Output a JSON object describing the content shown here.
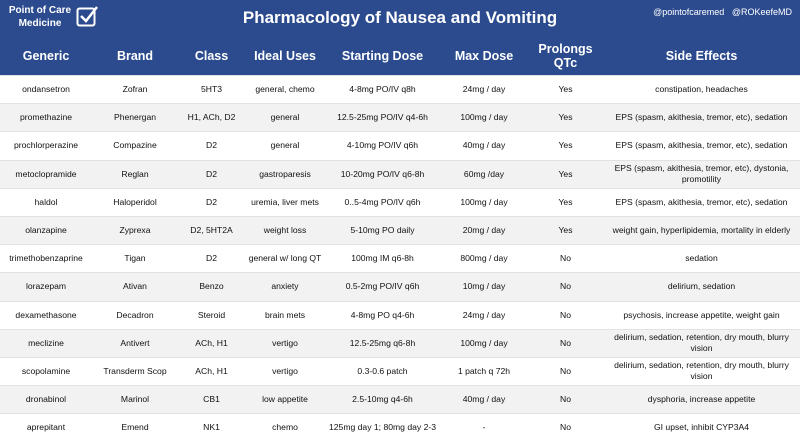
{
  "header": {
    "logo": [
      "Point of Care",
      "Medicine"
    ],
    "title": "Pharmacology of Nausea and Vomiting",
    "handles": [
      "@pointofcaremed",
      "@ROKeefeMD"
    ]
  },
  "table": {
    "columns": [
      "Generic",
      "Brand",
      "Class",
      "Ideal Uses",
      "Starting Dose",
      "Max Dose",
      "Prolongs QTc",
      "Side Effects"
    ],
    "rows": [
      [
        "ondansetron",
        "Zofran",
        "5HT3",
        "general, chemo",
        "4-8mg PO/IV q8h",
        "24mg / day",
        "Yes",
        "constipation, headaches"
      ],
      [
        "promethazine",
        "Phenergan",
        "H1, ACh, D2",
        "general",
        "12.5-25mg PO/IV q4-6h",
        "100mg / day",
        "Yes",
        "EPS (spasm, akithesia, tremor, etc), sedation"
      ],
      [
        "prochlorperazine",
        "Compazine",
        "D2",
        "general",
        "4-10mg PO/IV q6h",
        "40mg / day",
        "Yes",
        "EPS (spasm, akithesia, tremor, etc), sedation"
      ],
      [
        "metoclopramide",
        "Reglan",
        "D2",
        "gastroparesis",
        "10-20mg PO/IV q6-8h",
        "60mg /day",
        "Yes",
        "EPS (spasm, akithesia, tremor, etc), dystonia, promotility"
      ],
      [
        "haldol",
        "Haloperidol",
        "D2",
        "uremia, liver mets",
        "0..5-4mg PO/IV q6h",
        "100mg / day",
        "Yes",
        "EPS (spasm, akithesia, tremor, etc), sedation"
      ],
      [
        "olanzapine",
        "Zyprexa",
        "D2, 5HT2A",
        "weight loss",
        "5-10mg PO daily",
        "20mg / day",
        "Yes",
        "weight gain, hyperlipidemia, mortality in elderly"
      ],
      [
        "trimethobenzaprine",
        "Tigan",
        "D2",
        "general w/ long QT",
        "100mg IM q6-8h",
        "800mg / day",
        "No",
        "sedation"
      ],
      [
        "lorazepam",
        "Ativan",
        "Benzo",
        "anxiety",
        "0.5-2mg PO/IV q6h",
        "10mg / day",
        "No",
        "delirium, sedation"
      ],
      [
        "dexamethasone",
        "Decadron",
        "Steroid",
        "brain mets",
        "4-8mg PO q4-6h",
        "24mg / day",
        "No",
        "psychosis, increase appetite, weight gain"
      ],
      [
        "meclizine",
        "Antivert",
        "ACh, H1",
        "vertigo",
        "12.5-25mg q6-8h",
        "100mg / day",
        "No",
        "delirium, sedation, retention, dry mouth, blurry vision"
      ],
      [
        "scopolamine",
        "Transderm Scop",
        "ACh, H1",
        "vertigo",
        "0.3-0.6 patch",
        "1 patch q 72h",
        "No",
        "delirium, sedation, retention, dry mouth, blurry vision"
      ],
      [
        "dronabinol",
        "Marinol",
        "CB1",
        "low appetite",
        "2.5-10mg q4-6h",
        "40mg / day",
        "No",
        "dysphoria, increase appetite"
      ],
      [
        "aprepitant",
        "Emend",
        "NK1",
        "chemo",
        "125mg day 1; 80mg day 2-3",
        "-",
        "No",
        "GI upset, inhibit CYP3A4"
      ]
    ]
  }
}
